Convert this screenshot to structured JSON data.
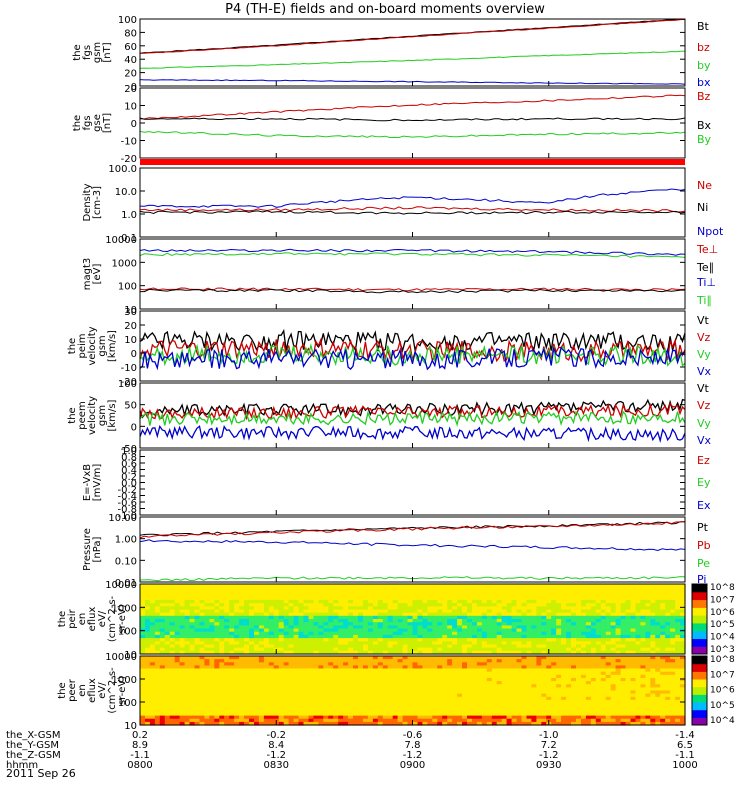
{
  "title": "P4 (TH-E) fields and on-board moments overview",
  "footer_date": "2011 Sep 26",
  "colors": {
    "black": "#000000",
    "red": "#cc0000",
    "green": "#22cc22",
    "blue": "#0000cc",
    "bar": "#ff0000"
  },
  "x_axis": {
    "rows": [
      {
        "label": "the_X-GSM",
        "values": [
          "0.2",
          "-0.2",
          "-0.6",
          "-1.0",
          "-1.4"
        ]
      },
      {
        "label": "the_Y-GSM",
        "values": [
          "8.9",
          "8.4",
          "7.8",
          "7.2",
          "6.5"
        ]
      },
      {
        "label": "the_Z-GSM",
        "values": [
          "-1.1",
          "-1.2",
          "-1.2",
          "-1.2",
          "-1.1"
        ]
      },
      {
        "label": "hhmm",
        "values": [
          "0800",
          "0830",
          "0900",
          "0930",
          "1000"
        ]
      }
    ]
  },
  "chart_data": [
    {
      "type": "line",
      "ylabel": [
        "the",
        "fgs",
        "gsm",
        "[nT]"
      ],
      "ylim": [
        -10,
        100
      ],
      "yticks": [
        "100",
        "80",
        "60",
        "40",
        "20",
        "0"
      ],
      "x": [
        "0800",
        "0830",
        "0900",
        "0930",
        "1000"
      ],
      "series": [
        {
          "name": "Bt",
          "color": "black",
          "values": [
            44,
            57,
            72,
            86,
            100
          ]
        },
        {
          "name": "bz",
          "color": "red",
          "values": [
            43,
            56,
            71,
            85,
            99
          ]
        },
        {
          "name": "by",
          "color": "green",
          "values": [
            19,
            25,
            32,
            40,
            47
          ]
        },
        {
          "name": "bx",
          "color": "blue",
          "values": [
            0,
            -1,
            -3,
            -5,
            -7
          ]
        }
      ]
    },
    {
      "type": "line",
      "ylabel": [
        "the",
        "fgs",
        "gse",
        "[nT]"
      ],
      "ylim": [
        -28,
        22
      ],
      "yticks": [
        "20",
        "10",
        "0",
        "-10",
        "-20"
      ],
      "x": [
        "0800",
        "0830",
        "0900",
        "0930",
        "1000"
      ],
      "series": [
        {
          "name": "Bz",
          "color": "red",
          "values": [
            0,
            5,
            10,
            13,
            17
          ]
        },
        {
          "name": "Bx",
          "color": "black",
          "values": [
            0,
            0,
            -1,
            0,
            0
          ]
        },
        {
          "name": "By",
          "color": "green",
          "values": [
            -9,
            -12,
            -13,
            -11,
            -10
          ]
        }
      ]
    },
    {
      "type": "line",
      "ylabel": [
        "Density",
        "[cm-3]"
      ],
      "scale": "log",
      "ylim": [
        0.1,
        200
      ],
      "yticks": [
        "100.0",
        "10.0",
        "1.0",
        "0.1"
      ],
      "x": [
        "0800",
        "0830",
        "0900",
        "0930",
        "1000"
      ],
      "series": [
        {
          "name": "Ne",
          "color": "red",
          "values": [
            2.0,
            2.0,
            2.5,
            2.0,
            1.8
          ]
        },
        {
          "name": "Ni",
          "color": "black",
          "values": [
            1.5,
            1.6,
            1.4,
            1.5,
            1.6
          ]
        },
        {
          "name": "Npot",
          "color": "blue",
          "values": [
            3,
            3,
            8,
            4,
            20
          ]
        }
      ]
    },
    {
      "type": "line",
      "ylabel": [
        "magt3",
        "[eV]"
      ],
      "scale": "log",
      "ylim": [
        10,
        15000
      ],
      "yticks": [
        "10000",
        "1000",
        "100",
        "10"
      ],
      "x": [
        "0800",
        "0830",
        "0900",
        "0930",
        "1000"
      ],
      "series": [
        {
          "name": "Te⊥",
          "color": "red",
          "values": [
            80,
            80,
            75,
            80,
            75
          ]
        },
        {
          "name": "Te∥",
          "color": "black",
          "values": [
            70,
            70,
            60,
            70,
            70
          ]
        },
        {
          "name": "Ti⊥",
          "color": "blue",
          "values": [
            4500,
            4600,
            4500,
            4000,
            3000
          ]
        },
        {
          "name": "Ti∥",
          "color": "green",
          "values": [
            3000,
            3200,
            3100,
            2800,
            2200
          ]
        }
      ]
    },
    {
      "type": "line",
      "ylabel": [
        "the",
        "peim",
        "velocity",
        "gsm",
        "[km/s]"
      ],
      "ylim": [
        -20,
        30
      ],
      "yticks": [
        "30",
        "20",
        "10",
        "0",
        "-10",
        "-20"
      ],
      "x": [
        "0800",
        "0830",
        "0900",
        "0930",
        "1000"
      ],
      "series": [
        {
          "name": "Vt",
          "color": "black",
          "values": [
            8,
            9,
            8,
            8,
            8
          ]
        },
        {
          "name": "Vz",
          "color": "red",
          "values": [
            2,
            3,
            2,
            1,
            2
          ]
        },
        {
          "name": "Vy",
          "color": "green",
          "values": [
            -2,
            -1,
            -2,
            -1,
            -2
          ]
        },
        {
          "name": "Vx",
          "color": "blue",
          "values": [
            -5,
            -4,
            -5,
            -3,
            -4
          ]
        }
      ]
    },
    {
      "type": "line",
      "ylabel": [
        "the",
        "peem",
        "velocity",
        "gsm",
        "[km/s]"
      ],
      "ylim": [
        -60,
        100
      ],
      "yticks": [
        "100",
        "50",
        "0",
        "-50"
      ],
      "x": [
        "0800",
        "0830",
        "0900",
        "0930",
        "1000"
      ],
      "series": [
        {
          "name": "Vt",
          "color": "black",
          "values": [
            30,
            35,
            35,
            38,
            45
          ]
        },
        {
          "name": "Vz",
          "color": "red",
          "values": [
            25,
            28,
            28,
            30,
            35
          ]
        },
        {
          "name": "Vy",
          "color": "green",
          "values": [
            10,
            12,
            12,
            14,
            15
          ]
        },
        {
          "name": "Vx",
          "color": "blue",
          "values": [
            -20,
            -22,
            -22,
            -25,
            -28
          ]
        }
      ]
    },
    {
      "type": "line",
      "ylabel": [
        "E=-VxB",
        "[mV/m]"
      ],
      "ylim": [
        -1,
        1
      ],
      "yticks": [
        "1.0",
        "0.8",
        "0.6",
        "0.4",
        "0.2",
        "0.0",
        "-0.2",
        "-0.4",
        "-0.6",
        "-0.8",
        "-1.0"
      ],
      "x": [],
      "series": [
        {
          "name": "Ez",
          "color": "red",
          "values": []
        },
        {
          "name": "Ey",
          "color": "green",
          "values": []
        },
        {
          "name": "Ex",
          "color": "blue",
          "values": []
        }
      ]
    },
    {
      "type": "line",
      "ylabel": [
        "Pressure",
        "[nPa]"
      ],
      "scale": "log",
      "ylim": [
        0.01,
        10
      ],
      "yticks": [
        "10.00",
        "1.00",
        "0.10",
        "0.01"
      ],
      "x": [
        "0800",
        "0830",
        "0900",
        "0930",
        "1000"
      ],
      "series": [
        {
          "name": "Pt",
          "color": "black",
          "values": [
            1.4,
            2.1,
            3.0,
            4.0,
            5.5
          ]
        },
        {
          "name": "Pb",
          "color": "red",
          "values": [
            1.2,
            1.9,
            2.8,
            3.8,
            5.4
          ]
        },
        {
          "name": "Pe",
          "color": "green",
          "values": [
            0.012,
            0.015,
            0.016,
            0.015,
            0.016
          ]
        },
        {
          "name": "Pi",
          "color": "blue",
          "values": [
            0.8,
            0.7,
            0.5,
            0.4,
            0.3
          ]
        }
      ]
    },
    {
      "type": "heatmap",
      "ylabel": [
        "the",
        "peir",
        "en",
        "eflux",
        "eV/",
        "(cm^2-s-",
        "sr-eV)"
      ],
      "scale": "log",
      "ylim": [
        6,
        20000
      ],
      "yticks": [
        "10000",
        "1000",
        "100",
        "10"
      ],
      "colorbar": {
        "labels": [
          "10^8",
          "10^7",
          "10^6",
          "10^5",
          "10^4",
          "10^3"
        ],
        "range": [
          1000,
          100000000
        ]
      },
      "x": [
        "0800",
        "0830",
        "0900",
        "0930",
        "1000"
      ]
    },
    {
      "type": "heatmap",
      "ylabel": [
        "the",
        "peer",
        "en",
        "eflux",
        "eV/",
        "(cm^2-s-",
        "sr-eV)"
      ],
      "scale": "log",
      "ylim": [
        6,
        20000
      ],
      "yticks": [
        "10000",
        "1000",
        "100",
        "10"
      ],
      "colorbar": {
        "labels": [
          "10^8",
          "10^7",
          "10^6",
          "10^5",
          "10^4"
        ],
        "range": [
          3000,
          300000000
        ]
      },
      "x": [
        "0800",
        "0830",
        "0900",
        "0930",
        "1000"
      ]
    }
  ]
}
